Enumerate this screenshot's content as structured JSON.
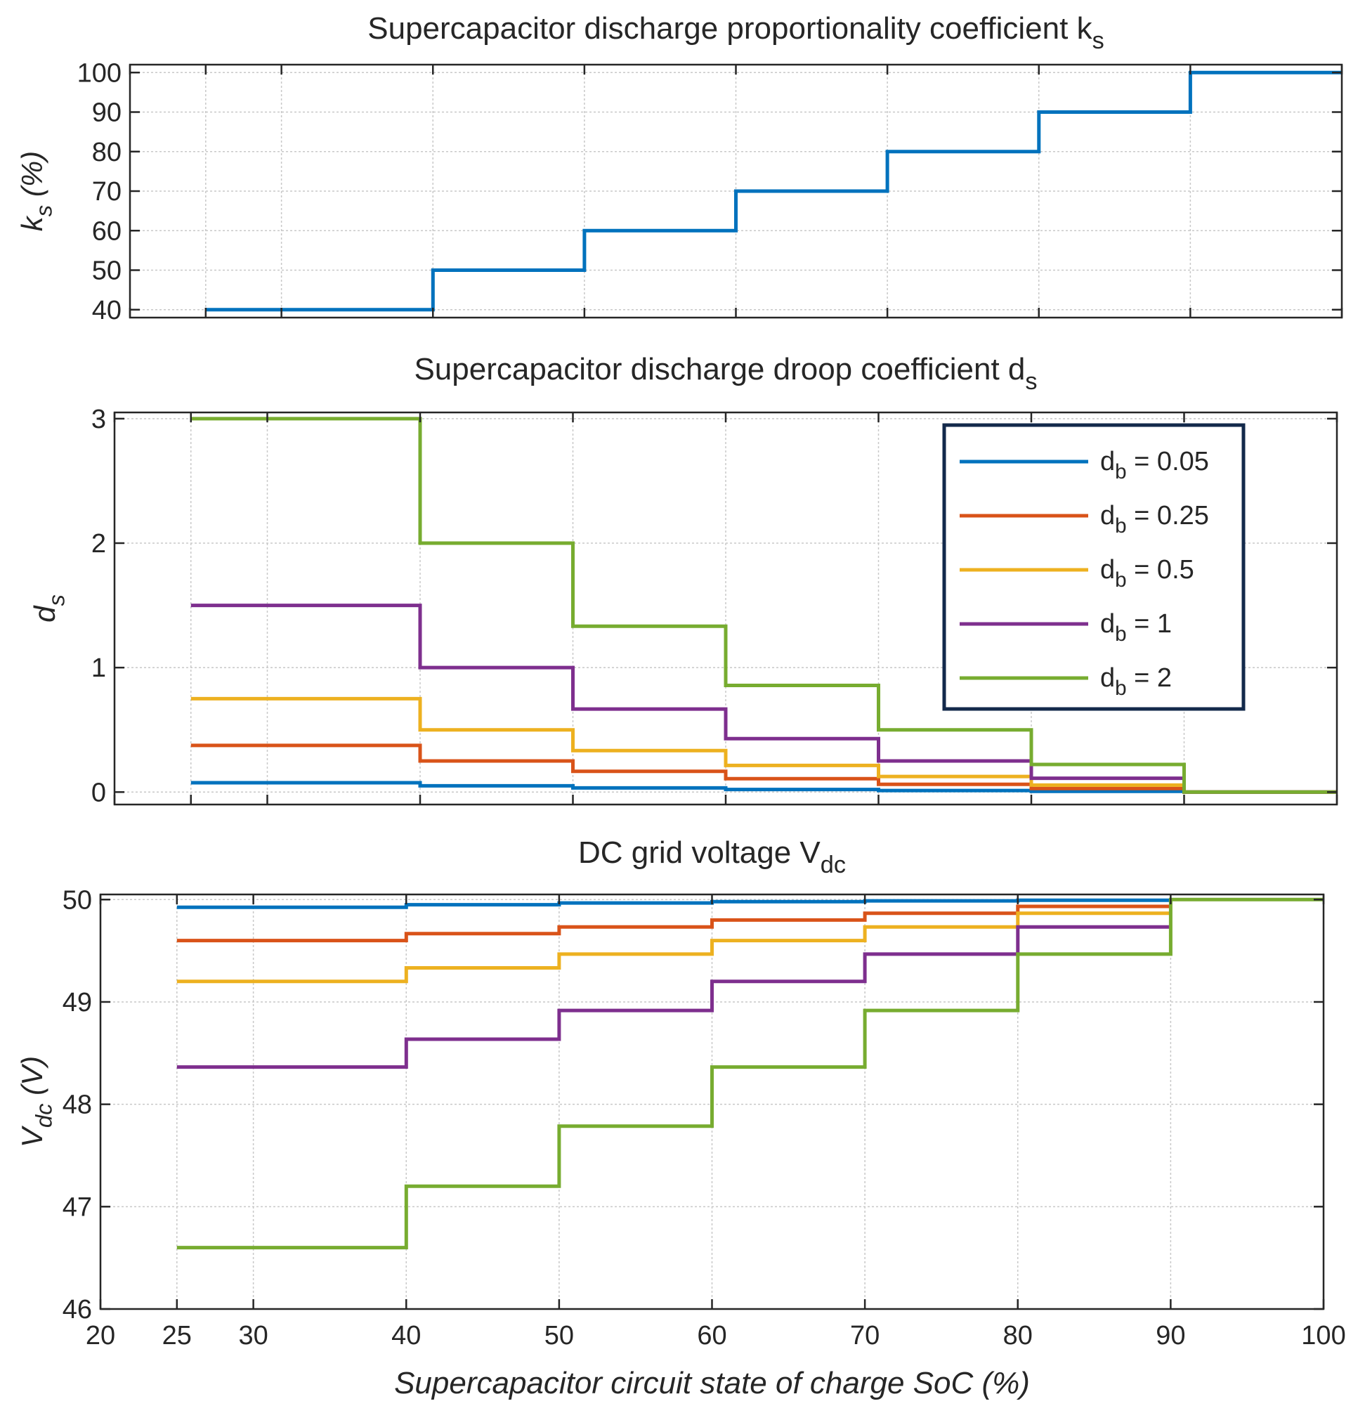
{
  "chart_data": [
    {
      "type": "line",
      "step": true,
      "title": "Supercapacitor discharge proportionality coefficient k",
      "title_sub": "s",
      "ylabel_main": "k",
      "ylabel_sub": "s",
      "ylabel_suffix": " (%)",
      "xlim": [
        20,
        100
      ],
      "ylim": [
        38,
        102
      ],
      "xticks": [
        20,
        25,
        30,
        40,
        50,
        60,
        70,
        80,
        90,
        100
      ],
      "yticks": [
        40,
        50,
        60,
        70,
        80,
        90,
        100
      ],
      "grid": true,
      "series": [
        {
          "name": "k_s",
          "color": "#0072BD",
          "x": [
            25,
            40,
            40,
            50,
            50,
            60,
            60,
            70,
            70,
            80,
            80,
            90,
            90,
            100
          ],
          "y": [
            40,
            40,
            50,
            50,
            60,
            60,
            70,
            70,
            80,
            80,
            90,
            90,
            100,
            100
          ]
        }
      ]
    },
    {
      "type": "line",
      "step": true,
      "title": "Supercapacitor discharge droop coefficient d",
      "title_sub": "s",
      "ylabel_main": "d",
      "ylabel_sub": "s",
      "ylabel_suffix": "",
      "xlim": [
        20,
        100
      ],
      "ylim": [
        -0.1,
        3.05
      ],
      "xticks": [
        20,
        25,
        30,
        40,
        50,
        60,
        70,
        80,
        90,
        100
      ],
      "yticks": [
        0,
        1,
        2,
        3
      ],
      "grid": true,
      "legend_position": "top-right",
      "series": [
        {
          "name": "d_b = 0.05",
          "label_main": "d",
          "label_sub": "b",
          "label_rest": " = 0.05",
          "color": "#0072BD",
          "x": [
            25,
            40,
            40,
            50,
            50,
            60,
            60,
            70,
            70,
            80,
            80,
            90,
            90,
            100
          ],
          "y": [
            0.075,
            0.075,
            0.05,
            0.05,
            0.033,
            0.033,
            0.021,
            0.021,
            0.0125,
            0.0125,
            0.0056,
            0.0056,
            0,
            0
          ]
        },
        {
          "name": "d_b = 0.25",
          "label_main": "d",
          "label_sub": "b",
          "label_rest": " = 0.25",
          "color": "#D95319",
          "x": [
            25,
            40,
            40,
            50,
            50,
            60,
            60,
            70,
            70,
            80,
            80,
            90,
            90,
            100
          ],
          "y": [
            0.375,
            0.375,
            0.25,
            0.25,
            0.167,
            0.167,
            0.107,
            0.107,
            0.0625,
            0.0625,
            0.028,
            0.028,
            0,
            0
          ]
        },
        {
          "name": "d_b = 0.5",
          "label_main": "d",
          "label_sub": "b",
          "label_rest": " = 0.5",
          "color": "#EDB120",
          "x": [
            25,
            40,
            40,
            50,
            50,
            60,
            60,
            70,
            70,
            80,
            80,
            90,
            90,
            100
          ],
          "y": [
            0.75,
            0.75,
            0.5,
            0.5,
            0.333,
            0.333,
            0.214,
            0.214,
            0.125,
            0.125,
            0.056,
            0.056,
            0,
            0
          ]
        },
        {
          "name": "d_b = 1",
          "label_main": "d",
          "label_sub": "b",
          "label_rest": " = 1",
          "color": "#7E2F8E",
          "x": [
            25,
            40,
            40,
            50,
            50,
            60,
            60,
            70,
            70,
            80,
            80,
            90,
            90,
            100
          ],
          "y": [
            1.5,
            1.5,
            1.0,
            1.0,
            0.667,
            0.667,
            0.429,
            0.429,
            0.25,
            0.25,
            0.111,
            0.111,
            0,
            0
          ]
        },
        {
          "name": "d_b = 2",
          "label_main": "d",
          "label_sub": "b",
          "label_rest": " = 2",
          "color": "#77AC30",
          "x": [
            25,
            40,
            40,
            50,
            50,
            60,
            60,
            70,
            70,
            80,
            80,
            90,
            90,
            100
          ],
          "y": [
            3.0,
            3.0,
            2.0,
            2.0,
            1.333,
            1.333,
            0.857,
            0.857,
            0.5,
            0.5,
            0.222,
            0.222,
            0,
            0
          ]
        }
      ]
    },
    {
      "type": "line",
      "step": true,
      "title": "DC grid voltage V",
      "title_sub": "dc",
      "ylabel_main": "V",
      "ylabel_sub": "dc",
      "ylabel_suffix": " (V)",
      "xlabel": "Supercapacitor circuit state of charge SoC (%)",
      "xlim": [
        20,
        100
      ],
      "ylim": [
        46,
        50.05
      ],
      "xticks": [
        20,
        25,
        30,
        40,
        50,
        60,
        70,
        80,
        90,
        100
      ],
      "yticks": [
        46,
        47,
        48,
        49,
        50
      ],
      "grid": true,
      "series": [
        {
          "name": "d_b = 0.05",
          "color": "#0072BD",
          "x": [
            25,
            40,
            40,
            50,
            50,
            60,
            60,
            70,
            70,
            80,
            80,
            90
          ],
          "y": [
            49.925,
            49.925,
            49.95,
            49.95,
            49.967,
            49.967,
            49.979,
            49.979,
            49.9875,
            49.9875,
            49.994,
            49.994
          ]
        },
        {
          "name": "d_b = 0.25",
          "color": "#D95319",
          "x": [
            25,
            40,
            40,
            50,
            50,
            60,
            60,
            70,
            70,
            80,
            80,
            90
          ],
          "y": [
            49.6,
            49.6,
            49.667,
            49.667,
            49.733,
            49.733,
            49.8,
            49.8,
            49.867,
            49.867,
            49.933,
            49.933
          ]
        },
        {
          "name": "d_b = 0.5",
          "color": "#EDB120",
          "x": [
            25,
            40,
            40,
            50,
            50,
            60,
            60,
            70,
            70,
            80,
            80,
            90
          ],
          "y": [
            49.2,
            49.2,
            49.333,
            49.333,
            49.467,
            49.467,
            49.6,
            49.6,
            49.733,
            49.733,
            49.867,
            49.867
          ]
        },
        {
          "name": "d_b = 1",
          "color": "#7E2F8E",
          "x": [
            25,
            40,
            40,
            50,
            50,
            60,
            60,
            70,
            70,
            80,
            80,
            90
          ],
          "y": [
            48.364,
            48.364,
            48.636,
            48.636,
            48.917,
            48.917,
            49.2,
            49.2,
            49.467,
            49.467,
            49.733,
            49.733
          ]
        },
        {
          "name": "d_b = 2",
          "color": "#77AC30",
          "x": [
            25,
            40,
            40,
            50,
            50,
            60,
            60,
            70,
            70,
            80,
            80,
            90,
            90,
            100
          ],
          "y": [
            46.6,
            46.6,
            47.2,
            47.2,
            47.786,
            47.786,
            48.364,
            48.364,
            48.917,
            48.917,
            49.467,
            49.467,
            50.0,
            50.0
          ]
        }
      ]
    }
  ]
}
